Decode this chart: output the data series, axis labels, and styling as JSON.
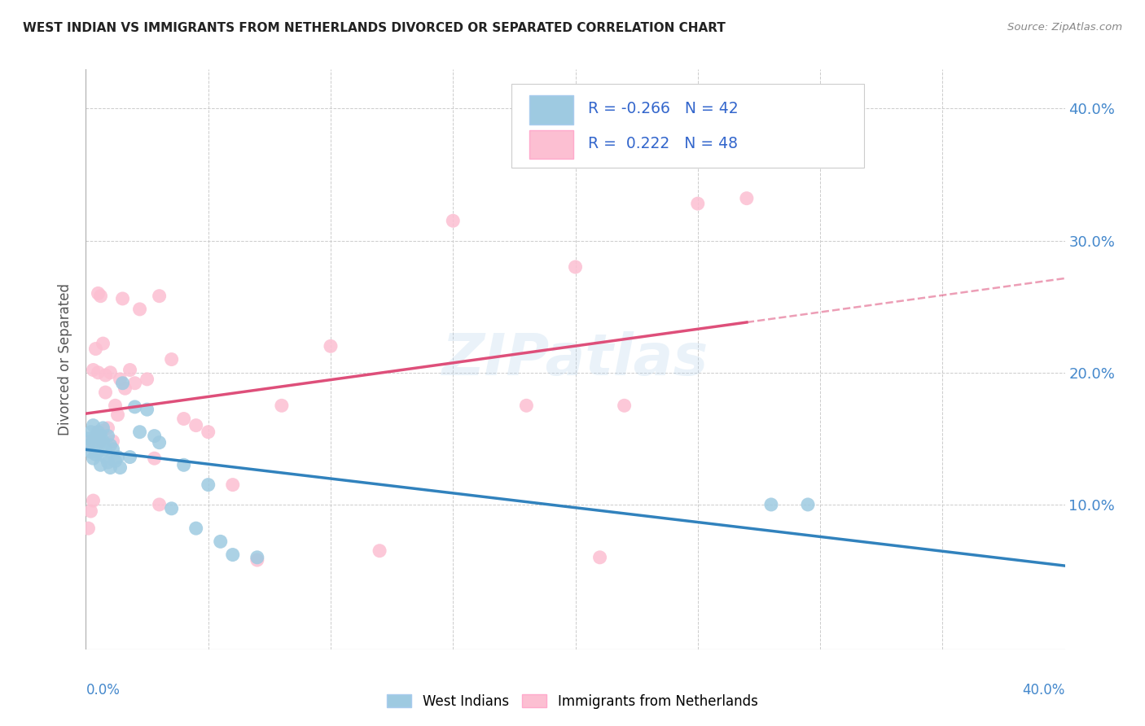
{
  "title": "WEST INDIAN VS IMMIGRANTS FROM NETHERLANDS DIVORCED OR SEPARATED CORRELATION CHART",
  "source": "Source: ZipAtlas.com",
  "ylabel": "Divorced or Separated",
  "right_yticks": [
    0.1,
    0.2,
    0.3,
    0.4
  ],
  "right_yticklabels": [
    "10.0%",
    "20.0%",
    "30.0%",
    "40.0%"
  ],
  "xlim": [
    0.0,
    0.4
  ],
  "ylim": [
    -0.01,
    0.43
  ],
  "color_blue": "#9ecae1",
  "color_pink": "#fcbfd2",
  "color_blue_line": "#3182bd",
  "color_pink_line": "#de4f7a",
  "color_grid": "#cccccc",
  "color_title": "#222222",
  "color_source": "#888888",
  "color_axis_blue": "#4488cc",
  "color_legend_text": "#3366cc",
  "west_indian_x": [
    0.001,
    0.001,
    0.002,
    0.002,
    0.003,
    0.003,
    0.003,
    0.004,
    0.004,
    0.005,
    0.005,
    0.005,
    0.006,
    0.006,
    0.007,
    0.007,
    0.008,
    0.008,
    0.009,
    0.009,
    0.01,
    0.01,
    0.011,
    0.012,
    0.013,
    0.014,
    0.015,
    0.018,
    0.02,
    0.022,
    0.025,
    0.028,
    0.03,
    0.035,
    0.04,
    0.045,
    0.05,
    0.055,
    0.06,
    0.07,
    0.28,
    0.295
  ],
  "west_indian_y": [
    0.15,
    0.145,
    0.155,
    0.14,
    0.16,
    0.148,
    0.135,
    0.152,
    0.138,
    0.155,
    0.148,
    0.14,
    0.152,
    0.13,
    0.148,
    0.158,
    0.142,
    0.136,
    0.152,
    0.132,
    0.145,
    0.128,
    0.142,
    0.133,
    0.136,
    0.128,
    0.192,
    0.136,
    0.174,
    0.155,
    0.172,
    0.152,
    0.147,
    0.097,
    0.13,
    0.082,
    0.115,
    0.072,
    0.062,
    0.06,
    0.1,
    0.1
  ],
  "netherlands_x": [
    0.001,
    0.001,
    0.002,
    0.002,
    0.003,
    0.003,
    0.004,
    0.004,
    0.005,
    0.005,
    0.006,
    0.006,
    0.007,
    0.007,
    0.008,
    0.008,
    0.009,
    0.01,
    0.011,
    0.012,
    0.013,
    0.014,
    0.015,
    0.016,
    0.018,
    0.02,
    0.022,
    0.025,
    0.028,
    0.03,
    0.035,
    0.04,
    0.045,
    0.05,
    0.06,
    0.08,
    0.1,
    0.12,
    0.15,
    0.18,
    0.2,
    0.22,
    0.25,
    0.27,
    0.005,
    0.03,
    0.07,
    0.21
  ],
  "netherlands_y": [
    0.145,
    0.082,
    0.095,
    0.148,
    0.103,
    0.202,
    0.15,
    0.218,
    0.155,
    0.2,
    0.148,
    0.258,
    0.156,
    0.222,
    0.198,
    0.185,
    0.158,
    0.2,
    0.148,
    0.175,
    0.168,
    0.195,
    0.256,
    0.188,
    0.202,
    0.192,
    0.248,
    0.195,
    0.135,
    0.258,
    0.21,
    0.165,
    0.16,
    0.155,
    0.115,
    0.175,
    0.22,
    0.065,
    0.315,
    0.175,
    0.28,
    0.175,
    0.328,
    0.332,
    0.26,
    0.1,
    0.058,
    0.06
  ]
}
